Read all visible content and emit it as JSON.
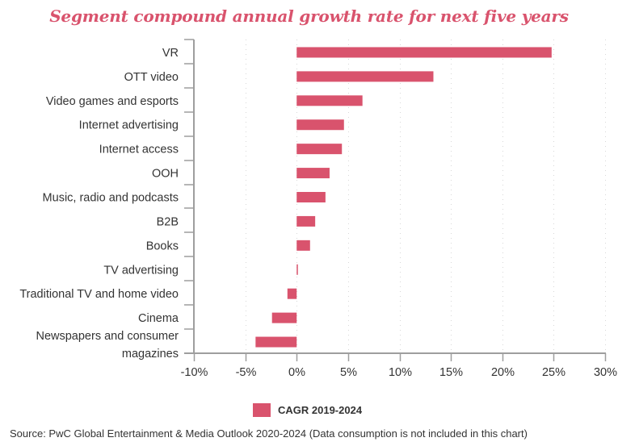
{
  "chart_data": {
    "type": "bar",
    "orientation": "horizontal",
    "title": "Segment compound annual growth rate for next five years",
    "categories": [
      "VR",
      "OTT video",
      "Video games and esports",
      "Internet advertising",
      "Internet access",
      "OOH",
      "Music, radio and podcasts",
      "B2B",
      "Books",
      "TV advertising",
      "Traditional TV and home video",
      "Cinema",
      "Newspapers and consumer magazines"
    ],
    "series": [
      {
        "name": "CAGR 2019-2024",
        "color": "#d9536d",
        "values": [
          24.8,
          13.3,
          6.4,
          4.6,
          4.4,
          3.2,
          2.8,
          1.8,
          1.3,
          0.1,
          -0.9,
          -2.4,
          -4.0
        ]
      }
    ],
    "xlabel": "",
    "ylabel": "",
    "xlim": [
      -10,
      30
    ],
    "x_ticks": [
      -10,
      -5,
      0,
      5,
      10,
      15,
      20,
      25,
      30
    ],
    "x_tick_labels": [
      "-10%",
      "-5%",
      "0%",
      "5%",
      "10%",
      "15%",
      "20%",
      "25%",
      "30%"
    ],
    "grid": "vertical dotted",
    "legend": {
      "position": "bottom-center",
      "entries": [
        "CAGR 2019-2024"
      ]
    },
    "source": "Source: PwC Global Entertainment & Media Outlook 2020-2024 (Data consumption is not included in this chart)"
  }
}
